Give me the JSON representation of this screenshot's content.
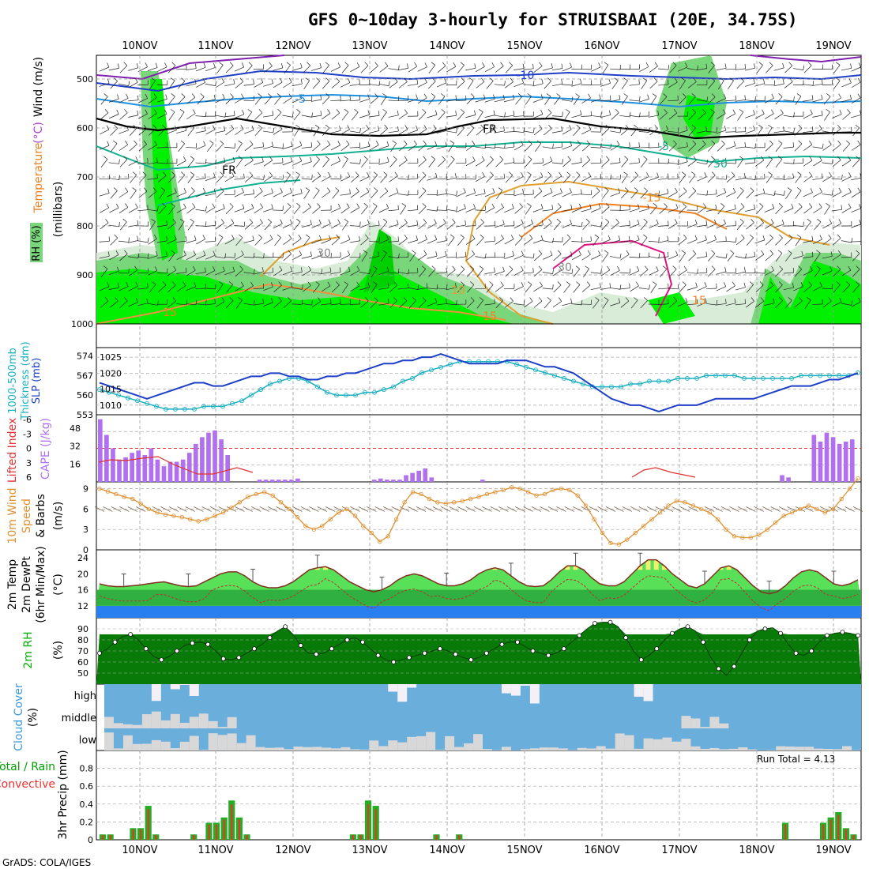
{
  "title": "GFS 0~10day 3-hourly for STRUISBAAI (20E, 34.75S)",
  "footer": "GrADS: COLA/IGES",
  "dates": [
    "10NOV",
    "11NOV",
    "12NOV",
    "13NOV",
    "14NOV",
    "15NOV",
    "16NOV",
    "17NOV",
    "18NOV",
    "19NOV"
  ],
  "colors": {
    "rh_green": "#00f000",
    "rh_mid": "#7ad67a",
    "rh_light": "#d8ecd8",
    "slp": "#1e3fc8",
    "thick": "#1ab0c0",
    "cape": "#b070f0",
    "li": "#e03030",
    "wind": "#e09030",
    "temp_band": "#58e058",
    "dew_band": "#2880f0",
    "cloud_bg": "#6aaedc",
    "cloud_low": "#d8d8d8",
    "precip_total": "#22b022",
    "precip_conv": "#f03030"
  },
  "panels": {
    "upper": {
      "ylabel_main": "(millibars)",
      "side_labels": [
        {
          "text": "Wind (m/s)",
          "color": "#000000"
        },
        {
          "text": "(°C)",
          "color": "#b040d0"
        },
        {
          "text": "Temperature",
          "color": "#f08020"
        },
        {
          "text": "RH (%)",
          "color": "#00b000"
        }
      ],
      "yticks": [
        "500",
        "600",
        "700",
        "800",
        "900",
        "1000"
      ],
      "contour_labels": [
        "-10",
        "-5",
        "FR",
        "FR",
        "-5",
        "50",
        "-15",
        "30",
        "15",
        "15",
        "10",
        "15",
        "30"
      ]
    },
    "slp": {
      "ylabel_left": [
        "1000-500mb",
        "Thickness (dm)"
      ],
      "ylabel_right": "SLP (mb)",
      "yticks_right": [
        "1025",
        "1020",
        "1015",
        "1010"
      ],
      "yticks_left": [
        "574",
        "567",
        "560",
        "553"
      ]
    },
    "cape": {
      "ylabel_left": "Lifted Index",
      "ylabel_right": "CAPE (J/kg)",
      "yticks_left": [
        "-6",
        "-3",
        "0",
        "3",
        "6"
      ],
      "yticks_right": [
        "48",
        "32",
        "16"
      ]
    },
    "wind": {
      "ylabel": [
        "10m Wind",
        "Speed",
        "& Barbs"
      ],
      "unit": "(m/s)",
      "yticks": [
        "9",
        "6",
        "3",
        "0"
      ]
    },
    "temp": {
      "ylabel": [
        "2m Temp",
        "2m DewPt",
        "(6hr Min/Max)"
      ],
      "unit": "(°C)",
      "yticks": [
        "24",
        "20",
        "16",
        "12"
      ]
    },
    "rh": {
      "ylabel": "2m RH",
      "unit": "(%)",
      "yticks": [
        "90",
        "80",
        "70",
        "60",
        "50"
      ]
    },
    "cloud": {
      "ylabel": "Cloud Cover",
      "unit": "(%)",
      "levels": [
        "high",
        "middle",
        "low"
      ]
    },
    "precip": {
      "ylabel": "3hr Precip (mm)",
      "legend": [
        "Total / Rain",
        "Convective"
      ],
      "yticks": [
        "0.8",
        "0.6",
        "0.4",
        "0.2",
        "0"
      ],
      "run_total": "Run Total = 4.13"
    }
  },
  "chart_data": [
    {
      "type": "line",
      "name": "SLP",
      "x_start": "09NOV 12Z",
      "x_step_hours": 3,
      "ylabel": "SLP (mb)",
      "ylim": [
        1007,
        1028
      ],
      "values": [
        1017,
        1016,
        1015,
        1014,
        1013,
        1012,
        1013,
        1014,
        1015,
        1016,
        1017,
        1017,
        1016,
        1016,
        1017,
        1018,
        1019,
        1019,
        1020,
        1020,
        1019,
        1019,
        1018,
        1018,
        1019,
        1019,
        1020,
        1020,
        1021,
        1022,
        1023,
        1023,
        1024,
        1024,
        1025,
        1025,
        1026,
        1025,
        1024,
        1023,
        1023,
        1023,
        1023,
        1024,
        1024,
        1024,
        1023,
        1022,
        1022,
        1021,
        1020,
        1018,
        1016,
        1014,
        1012,
        1011,
        1010,
        1010,
        1009,
        1008,
        1009,
        1010,
        1010,
        1010,
        1011,
        1012,
        1012,
        1012,
        1012,
        1012,
        1013,
        1014,
        1015,
        1016,
        1016,
        1016,
        1017,
        1018,
        1018,
        1019,
        1020
      ]
    },
    {
      "type": "line",
      "name": "Thickness",
      "ylabel": "1000-500mb Thickness (dm)",
      "ylim": [
        553,
        577
      ],
      "values": [
        562,
        561,
        560,
        559,
        558,
        557,
        556,
        555,
        555,
        555,
        555,
        556,
        556,
        556,
        557,
        558,
        560,
        562,
        564,
        565,
        566,
        566,
        565,
        563,
        561,
        560,
        560,
        560,
        561,
        561,
        562,
        563,
        565,
        566,
        568,
        569,
        570,
        571,
        572,
        572,
        572,
        572,
        572,
        572,
        571,
        570,
        569,
        568,
        567,
        566,
        565,
        564,
        563,
        563,
        563,
        563,
        564,
        564,
        565,
        565,
        565,
        566,
        566,
        566,
        567,
        567,
        567,
        567,
        566,
        566,
        566,
        566,
        566,
        566,
        567,
        567,
        567,
        567,
        567,
        567,
        568
      ]
    },
    {
      "type": "bar",
      "name": "CAPE",
      "ylabel": "CAPE (J/kg)",
      "ylim": [
        0,
        60
      ],
      "values": [
        56,
        42,
        30,
        20,
        22,
        26,
        28,
        24,
        30,
        20,
        14,
        18,
        18,
        20,
        26,
        34,
        40,
        44,
        46,
        38,
        24,
        0,
        0,
        0,
        0,
        2,
        2,
        2,
        2,
        2,
        2,
        3,
        0,
        0,
        0,
        0,
        0,
        0,
        0,
        0,
        0,
        0,
        0,
        2,
        3,
        2,
        2,
        2,
        6,
        8,
        10,
        12,
        4,
        0,
        0,
        0,
        0,
        0,
        0,
        0,
        2,
        0,
        0,
        0,
        0,
        0,
        0,
        0,
        0,
        0,
        0,
        0,
        0,
        0,
        0,
        0,
        0,
        0,
        0,
        0,
        0,
        0,
        0,
        0,
        0,
        0,
        0,
        0,
        0,
        0,
        0,
        0,
        0,
        0,
        0,
        0,
        0,
        0,
        0,
        0,
        0,
        0,
        0,
        0,
        0,
        0,
        0,
        6,
        4,
        0,
        0,
        0,
        42,
        36,
        44,
        40,
        34,
        36,
        38
      ]
    },
    {
      "type": "line",
      "name": "10m Wind Speed",
      "ylabel": "(m/s)",
      "ylim": [
        0,
        10
      ],
      "values": [
        9,
        8.6,
        8.2,
        7.8,
        7.5,
        6.8,
        6.0,
        5.5,
        5.2,
        5.0,
        4.8,
        4.5,
        4.2,
        4.5,
        5.0,
        5.5,
        6.2,
        7.0,
        7.8,
        8.2,
        8.5,
        8.0,
        7.0,
        6.0,
        4.8,
        3.5,
        3.0,
        3.5,
        4.5,
        5.5,
        6.0,
        5.0,
        3.5,
        2.5,
        1.2,
        2.0,
        4.5,
        7.0,
        8.5,
        8.2,
        7.5,
        7.0,
        6.8,
        7.0,
        7.2,
        7.5,
        7.8,
        8.2,
        8.5,
        8.8,
        9.2,
        9.0,
        8.5,
        8.0,
        8.2,
        8.8,
        9.0,
        8.8,
        8.0,
        6.5,
        4.5,
        2.5,
        1.0,
        0.8,
        1.5,
        2.5,
        3.5,
        4.5,
        5.5,
        6.5,
        7.2,
        7.0,
        6.5,
        6.0,
        5.5,
        4.5,
        3.0,
        2.0,
        1.8,
        1.8,
        2.2,
        3.0,
        4.0,
        5.0,
        5.5,
        6.0,
        6.5,
        6.0,
        5.5,
        6.0,
        7.5,
        9.0,
        10.5
      ]
    },
    {
      "type": "area",
      "name": "2m Temp",
      "ylabel": "(°C)",
      "ylim": [
        9,
        26
      ],
      "values": [
        17.5,
        17,
        16.8,
        16.8,
        17,
        17.2,
        17.5,
        17.8,
        18,
        17.5,
        17,
        16.8,
        17,
        18,
        19,
        20,
        20.5,
        20.5,
        19.5,
        18,
        17,
        16.5,
        16.5,
        17,
        18,
        19.5,
        21,
        21.5,
        21.8,
        21,
        19.5,
        18,
        17,
        16,
        15.5,
        16,
        17,
        18.5,
        19.5,
        20,
        19.5,
        18.5,
        17.5,
        17,
        17,
        17.5,
        18.5,
        20,
        21,
        21.5,
        21,
        19.5,
        18,
        17,
        16.8,
        17,
        18.5,
        20.5,
        22,
        22,
        21,
        19,
        17.5,
        17,
        17,
        18,
        20,
        22,
        23.5,
        23.5,
        22,
        20,
        18.5,
        17,
        16.5,
        17.5,
        19.5,
        21.5,
        22,
        21,
        19,
        17,
        15.5,
        15,
        15.5,
        17,
        19,
        20.5,
        21,
        20.5,
        19,
        17.5,
        17,
        17.5,
        18.5
      ]
    },
    {
      "type": "area",
      "name": "2m RH",
      "ylabel": "(%)",
      "ylim": [
        40,
        100
      ],
      "values": [
        68,
        72,
        78,
        83,
        85,
        80,
        72,
        65,
        62,
        65,
        70,
        75,
        77,
        78,
        76,
        70,
        63,
        62,
        64,
        68,
        72,
        76,
        82,
        88,
        92,
        85,
        75,
        68,
        67,
        68,
        72,
        76,
        80,
        82,
        78,
        72,
        66,
        62,
        60,
        62,
        64,
        66,
        68,
        70,
        72,
        70,
        67,
        64,
        62,
        64,
        68,
        72,
        76,
        78,
        78,
        74,
        70,
        68,
        66,
        68,
        72,
        78,
        84,
        90,
        95,
        96,
        96,
        92,
        82,
        70,
        62,
        66,
        72,
        80,
        86,
        90,
        92,
        88,
        78,
        64,
        54,
        48,
        56,
        68,
        80,
        88,
        90,
        91,
        86,
        76,
        68,
        66,
        70,
        78,
        84,
        86,
        87,
        86,
        84
      ]
    },
    {
      "type": "bar",
      "name": "3hr Precip",
      "ylabel": "3hr Precip (mm)",
      "ylim": [
        0,
        1.0
      ],
      "values": [
        0.06,
        0.06,
        0,
        0,
        0.13,
        0.13,
        0.38,
        0.06,
        0,
        0,
        0,
        0,
        0.06,
        0,
        0.19,
        0.19,
        0.25,
        0.44,
        0.25,
        0.06,
        0,
        0,
        0,
        0,
        0,
        0,
        0,
        0,
        0,
        0,
        0,
        0,
        0,
        0.06,
        0.06,
        0.44,
        0.38,
        0,
        0,
        0,
        0,
        0,
        0,
        0,
        0.06,
        0,
        0,
        0.06,
        0,
        0,
        0,
        0,
        0,
        0,
        0,
        0,
        0,
        0,
        0,
        0,
        0,
        0,
        0,
        0,
        0,
        0,
        0,
        0,
        0,
        0,
        0,
        0,
        0,
        0,
        0,
        0,
        0,
        0,
        0,
        0,
        0,
        0,
        0,
        0,
        0,
        0,
        0,
        0,
        0,
        0,
        0.19,
        0,
        0,
        0,
        0,
        0.19,
        0.25,
        0.31,
        0.13,
        0.06
      ]
    }
  ]
}
